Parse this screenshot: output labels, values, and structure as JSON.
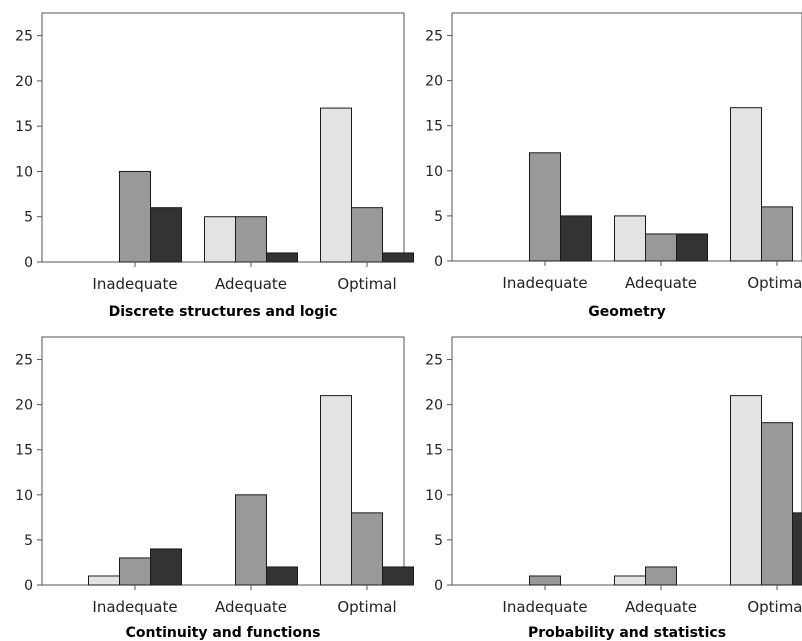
{
  "colors": {
    "series_1": "#e3e3e3",
    "series_2": "#999999",
    "series_3": "#333333",
    "axis": "#555555",
    "edge": "#1a1a1a"
  },
  "chart_data": [
    {
      "type": "bar",
      "title": "Discrete structures and logic",
      "categories": [
        "Inadequate",
        "Adequate",
        "Optimal"
      ],
      "series": [
        {
          "values": [
            0,
            5,
            17
          ]
        },
        {
          "values": [
            10,
            5,
            6
          ]
        },
        {
          "values": [
            6,
            1,
            1
          ]
        }
      ],
      "yticks": [
        "0",
        "5",
        "10",
        "15",
        "20",
        "25"
      ],
      "ylim": [
        0,
        27.5
      ],
      "grid": false,
      "legend": "none"
    },
    {
      "type": "bar",
      "title": "Geometry",
      "categories": [
        "Inadequate",
        "Adequate",
        "Optimal"
      ],
      "series": [
        {
          "values": [
            0,
            5,
            17
          ]
        },
        {
          "values": [
            12,
            3,
            6
          ]
        },
        {
          "values": [
            5,
            3,
            0
          ]
        }
      ],
      "yticks": [
        "0",
        "5",
        "10",
        "15",
        "20",
        "25"
      ],
      "ylim": [
        0,
        27.5
      ],
      "grid": false,
      "legend": "none"
    },
    {
      "type": "bar",
      "title": "Continuity and functions",
      "categories": [
        "Inadequate",
        "Adequate",
        "Optimal"
      ],
      "series": [
        {
          "values": [
            1,
            0,
            21
          ]
        },
        {
          "values": [
            3,
            10,
            8
          ]
        },
        {
          "values": [
            4,
            2,
            2
          ]
        }
      ],
      "yticks": [
        "0",
        "5",
        "10",
        "15",
        "20",
        "25"
      ],
      "ylim": [
        0,
        27.5
      ],
      "grid": false,
      "legend": "none"
    },
    {
      "type": "bar",
      "title": "Probability and statistics",
      "categories": [
        "Inadequate",
        "Adequate",
        "Optimal"
      ],
      "series": [
        {
          "values": [
            0,
            1,
            21
          ]
        },
        {
          "values": [
            1,
            2,
            18
          ]
        },
        {
          "values": [
            0,
            0,
            8
          ]
        }
      ],
      "yticks": [
        "0",
        "5",
        "10",
        "15",
        "20",
        "25"
      ],
      "ylim": [
        0,
        27.5
      ],
      "grid": false,
      "legend": "none"
    }
  ]
}
